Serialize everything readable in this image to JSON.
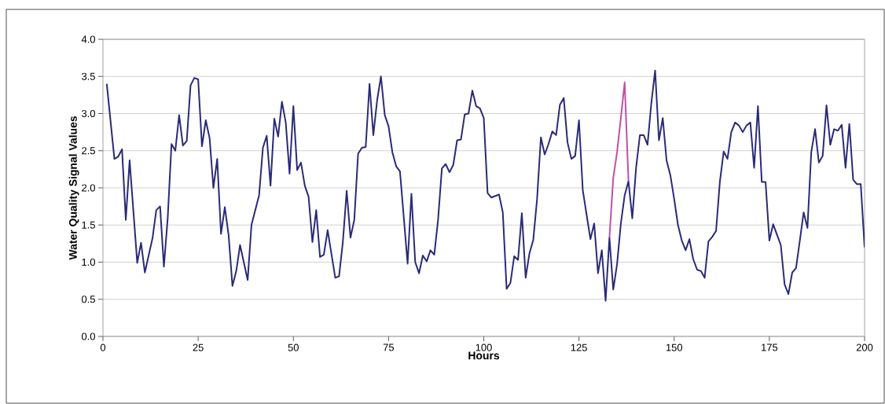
{
  "chart_data": {
    "type": "line",
    "xlabel": "Hours",
    "ylabel": "Water Quality Signal Values",
    "xlim": [
      0,
      200
    ],
    "ylim": [
      0,
      4
    ],
    "xticks": [
      0,
      25,
      50,
      75,
      100,
      125,
      150,
      175,
      200
    ],
    "yticks": [
      {
        "value": 0,
        "label": "0.0"
      },
      {
        "value": 0.5,
        "label": "0.5"
      },
      {
        "value": 1,
        "label": "1.0"
      },
      {
        "value": 1.5,
        "label": "1.5"
      },
      {
        "value": 2,
        "label": "2.0"
      },
      {
        "value": 2.5,
        "label": "2.5"
      },
      {
        "value": 3,
        "label": "3.0"
      },
      {
        "value": 3.5,
        "label": "3.5"
      },
      {
        "value": 4,
        "label": "4.0"
      }
    ],
    "grid": "y",
    "marker": "none",
    "line_style": "solid",
    "series": [
      {
        "color": "#2a2a78",
        "x": [
          1,
          3,
          4,
          5,
          6,
          7,
          9,
          10,
          11,
          13,
          14,
          15,
          16,
          17,
          18,
          19,
          20,
          21,
          22,
          23,
          24,
          25,
          26,
          27,
          28,
          29,
          30,
          31,
          32,
          33,
          34,
          35,
          36,
          38,
          39,
          40,
          41,
          42,
          43,
          44,
          45,
          46,
          47,
          48,
          49,
          50,
          51,
          52,
          53,
          54,
          55,
          56,
          57,
          58,
          59,
          61,
          62,
          63,
          64,
          65,
          66,
          67,
          68,
          69,
          70,
          71,
          72,
          73,
          74,
          75,
          76,
          77,
          78,
          80,
          81,
          82,
          83,
          84,
          85,
          86,
          87,
          88,
          89,
          90,
          91,
          92,
          93,
          94,
          95,
          96,
          97,
          98,
          99,
          100,
          101,
          102,
          104,
          105,
          106,
          107,
          108,
          109,
          110,
          111,
          112,
          113,
          114,
          115,
          116,
          117,
          118,
          119,
          120,
          121,
          122,
          123,
          124,
          125,
          126,
          127,
          128,
          129,
          130,
          131,
          132,
          133,
          134,
          135,
          136,
          137,
          138,
          139,
          140,
          141,
          142,
          143,
          144,
          145,
          146,
          147,
          148,
          149,
          150,
          151,
          152,
          153,
          154,
          155,
          156,
          157,
          158,
          159,
          160,
          161,
          162,
          163,
          164,
          165,
          166,
          167,
          168,
          169,
          170,
          171,
          172,
          173,
          174,
          175,
          176,
          177,
          178,
          179,
          180,
          181,
          182,
          183,
          184,
          185,
          186,
          187,
          188,
          189,
          190,
          191,
          192,
          193,
          194,
          195,
          196,
          197,
          198,
          199,
          200
        ],
        "values": [
          3.4,
          2.39,
          2.42,
          2.52,
          1.57,
          2.37,
          0.99,
          1.26,
          0.86,
          1.32,
          1.7,
          1.75,
          0.94,
          1.59,
          2.59,
          2.5,
          2.98,
          2.57,
          2.63,
          3.38,
          3.48,
          3.46,
          2.56,
          2.91,
          2.67,
          2.0,
          2.39,
          1.38,
          1.74,
          1.36,
          0.68,
          0.88,
          1.23,
          0.76,
          1.5,
          1.7,
          1.9,
          2.54,
          2.7,
          2.03,
          2.93,
          2.69,
          3.16,
          2.88,
          2.19,
          3.1,
          2.24,
          2.34,
          2.03,
          1.88,
          1.27,
          1.7,
          1.07,
          1.1,
          1.43,
          0.79,
          0.81,
          1.27,
          1.96,
          1.33,
          1.57,
          2.46,
          2.54,
          2.55,
          3.4,
          2.71,
          3.18,
          3.5,
          2.98,
          2.83,
          2.48,
          2.29,
          2.22,
          0.98,
          1.92,
          1.0,
          0.85,
          1.09,
          1.01,
          1.16,
          1.1,
          1.57,
          2.26,
          2.32,
          2.21,
          2.31,
          2.64,
          2.65,
          2.99,
          3.0,
          3.31,
          3.1,
          3.07,
          2.94,
          1.93,
          1.87,
          1.91,
          1.67,
          0.64,
          0.72,
          1.08,
          1.03,
          1.66,
          0.79,
          1.12,
          1.3,
          1.85,
          2.68,
          2.45,
          2.59,
          2.76,
          2.71,
          3.12,
          3.21,
          2.61,
          2.39,
          2.43,
          2.91,
          1.97,
          1.64,
          1.31,
          1.52,
          0.85,
          1.16,
          0.48,
          1.33,
          0.63,
          0.97,
          1.52,
          1.9,
          2.09,
          1.59,
          2.27,
          2.71,
          2.71,
          2.58,
          3.14,
          3.58,
          2.64,
          2.94,
          2.37,
          2.17,
          1.85,
          1.5,
          1.29,
          1.16,
          1.31,
          1.04,
          0.9,
          0.88,
          0.79,
          1.28,
          1.34,
          1.42,
          2.08,
          2.49,
          2.39,
          2.75,
          2.88,
          2.84,
          2.75,
          2.84,
          2.88,
          2.27,
          3.1,
          2.08,
          2.08,
          1.29,
          1.51,
          1.37,
          1.23,
          0.7,
          0.57,
          0.86,
          0.92,
          1.29,
          1.67,
          1.46,
          2.48,
          2.79,
          2.34,
          2.43,
          3.11,
          2.58,
          2.79,
          2.77,
          2.85,
          2.27,
          2.86,
          2.11,
          2.05,
          2.05,
          1.2
        ]
      },
      {
        "color": "#c050a8",
        "x": [
          133,
          134,
          135,
          136,
          137,
          138
        ],
        "values": [
          1.33,
          2.13,
          2.48,
          2.94,
          3.42,
          2.09
        ]
      }
    ]
  }
}
